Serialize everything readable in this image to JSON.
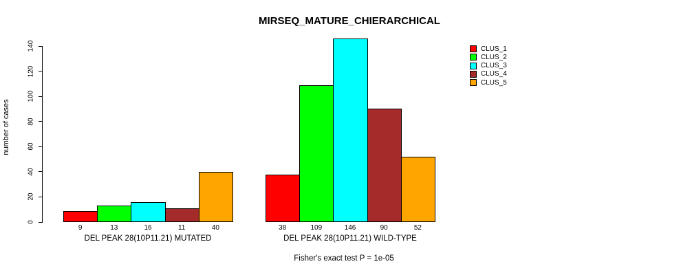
{
  "chart_data": {
    "type": "bar",
    "title": "MIRSEQ_MATURE_CHIERARCHICAL",
    "ylabel": "number of cases",
    "xlabel": "",
    "ylim": [
      0,
      140
    ],
    "yticks": [
      0,
      20,
      40,
      60,
      80,
      100,
      120,
      140
    ],
    "grid": false,
    "legend_position": "top-right",
    "bar_border_color": "#000000",
    "categories": [
      "DEL PEAK 28(10P11.21) MUTATED",
      "DEL PEAK 28(10P11.21) WILD-TYPE"
    ],
    "series": [
      {
        "name": "CLUS_1",
        "color": "#ff0000",
        "values": [
          9,
          38
        ]
      },
      {
        "name": "CLUS_2",
        "color": "#00ff00",
        "values": [
          13,
          109
        ]
      },
      {
        "name": "CLUS_3",
        "color": "#00ffff",
        "values": [
          16,
          146
        ]
      },
      {
        "name": "CLUS_4",
        "color": "#a52a2a",
        "values": [
          11,
          90
        ]
      },
      {
        "name": "CLUS_5",
        "color": "#ffa500",
        "values": [
          40,
          52
        ]
      }
    ],
    "value_labels": [
      [
        9,
        13,
        16,
        11,
        40
      ],
      [
        38,
        109,
        146,
        90,
        52
      ]
    ],
    "annotation": "Fisher's exact test P = 1e-05"
  }
}
